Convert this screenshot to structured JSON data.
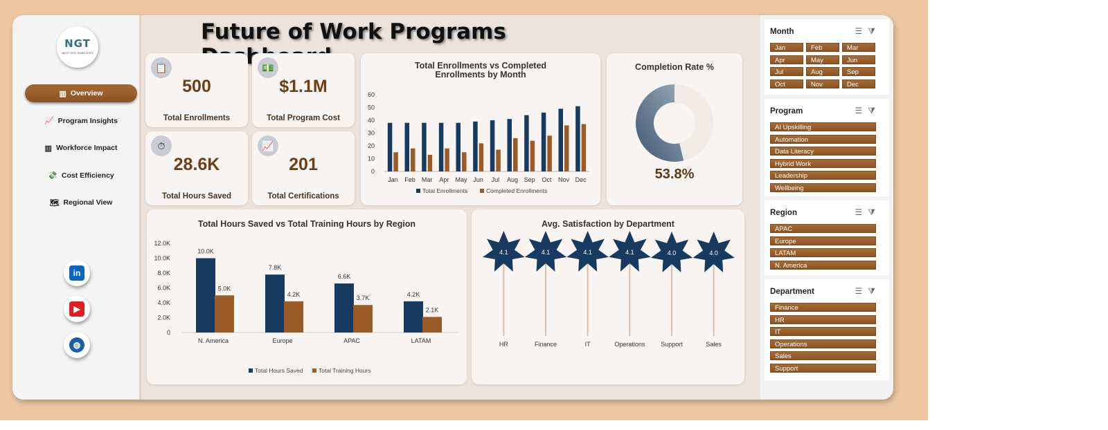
{
  "sidebar": {
    "logo": {
      "text": "NGT",
      "subtext": "NEXT GEN TEMPLATES"
    },
    "nav": [
      {
        "label": "Overview",
        "icon": "bar-chart-icon",
        "active": true
      },
      {
        "label": "Program Insights",
        "icon": "trend-chart-icon",
        "active": false
      },
      {
        "label": "Workforce Impact",
        "icon": "bar-chart-icon",
        "active": false
      },
      {
        "label": "Cost Efficiency",
        "icon": "money-icon",
        "active": false
      },
      {
        "label": "Regional View",
        "icon": "world-map-icon",
        "active": false
      }
    ],
    "social": [
      {
        "name": "linkedin-icon",
        "glyph": "in",
        "color": "#0a66c2"
      },
      {
        "name": "youtube-icon",
        "glyph": "▶",
        "color": "#e11d20"
      },
      {
        "name": "globe-icon",
        "glyph": "◍",
        "color": "#1c5fa8"
      }
    ]
  },
  "header": {
    "title": "Future of Work Programs Dashboard"
  },
  "kpis": [
    {
      "value": "500",
      "label": "Total Enrollments",
      "icon": "clipboard-icon"
    },
    {
      "value": "$1.1M",
      "label": "Total Program Cost",
      "icon": "money-icon"
    },
    {
      "value": "28.6K",
      "label": "Total Hours Saved",
      "icon": "stopwatch-icon"
    },
    {
      "value": "201",
      "label": "Total Certifications",
      "icon": "chart-up-icon"
    }
  ],
  "chart_data": [
    {
      "type": "bar",
      "title": "Total Enrollments vs Completed Enrollments by Month",
      "categories": [
        "Jan",
        "Feb",
        "Mar",
        "Apr",
        "May",
        "Jun",
        "Jul",
        "Aug",
        "Sep",
        "Oct",
        "Nov",
        "Dec"
      ],
      "series": [
        {
          "name": "Total Enrollments",
          "values": [
            38,
            38,
            38,
            38,
            38,
            39,
            40,
            41,
            44,
            46,
            49,
            51
          ],
          "color": "#163a60"
        },
        {
          "name": "Completed Enrollments",
          "values": [
            15,
            18,
            13,
            18,
            15,
            22,
            17,
            26,
            24,
            28,
            36,
            37
          ],
          "color": "#9a5b26"
        }
      ],
      "yticks": [
        "0",
        "10",
        "20",
        "30",
        "40",
        "50",
        "60"
      ],
      "ylim": [
        0,
        60
      ],
      "legend": "bottom"
    },
    {
      "type": "pie",
      "title": "Completion Rate %",
      "values": [
        53.8,
        46.2
      ],
      "value_label": "53.8%",
      "colors": [
        "#5e7891",
        "#f0ebe6"
      ]
    },
    {
      "type": "bar",
      "title": "Total Hours Saved vs Total Training Hours by Region",
      "categories": [
        "N. America",
        "Europe",
        "APAC",
        "LATAM"
      ],
      "series": [
        {
          "name": "Total Hours Saved",
          "values": [
            10000,
            7800,
            6600,
            4200
          ],
          "labels": [
            "10.0K",
            "7.8K",
            "6.6K",
            "4.2K"
          ],
          "color": "#163a60"
        },
        {
          "name": "Total Training Hours",
          "values": [
            5000,
            4200,
            3700,
            2100
          ],
          "labels": [
            "5.0K",
            "4.2K",
            "3.7K",
            "2.1K"
          ],
          "color": "#9a5b26"
        }
      ],
      "yticks": [
        "0",
        "2.0K",
        "4.0K",
        "6.0K",
        "8.0K",
        "10.0K",
        "12.0K"
      ],
      "ylim": [
        0,
        12000
      ],
      "legend": "bottom"
    },
    {
      "type": "lollipop",
      "title": "Avg. Satisfaction by Department",
      "categories": [
        "HR",
        "Finance",
        "IT",
        "Operations",
        "Support",
        "Sales"
      ],
      "values": [
        4.1,
        4.1,
        4.1,
        4.1,
        4.0,
        4.0
      ],
      "labels": [
        "4.1",
        "4.1",
        "4.1",
        "4.1",
        "4.0",
        "4.0"
      ],
      "marker_color": "#163a60",
      "stem_color": "#d8bfa7"
    }
  ],
  "slicers": [
    {
      "title": "Month",
      "items": [
        "Jan",
        "Feb",
        "Mar",
        "Apr",
        "May",
        "Jun",
        "Jul",
        "Aug",
        "Sep",
        "Oct",
        "Nov",
        "Dec"
      ],
      "columns": 3
    },
    {
      "title": "Program",
      "items": [
        "AI Upskilling",
        "Automation",
        "Data Literacy",
        "Hybrid Work",
        "Leadership",
        "Wellbeing"
      ],
      "columns": 1
    },
    {
      "title": "Region",
      "items": [
        "APAC",
        "Europe",
        "LATAM",
        "N. America"
      ],
      "columns": 1
    },
    {
      "title": "Department",
      "items": [
        "Finance",
        "HR",
        "IT",
        "Operations",
        "Sales",
        "Support"
      ],
      "columns": 1
    }
  ]
}
